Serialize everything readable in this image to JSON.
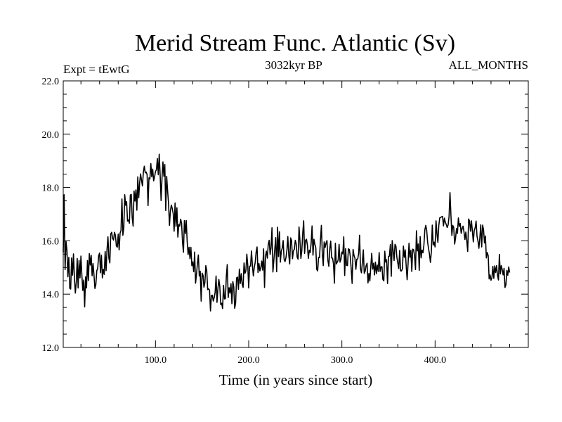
{
  "chart_data": {
    "type": "line",
    "title": "Merid Stream Func. Atlantic (Sv)",
    "left_note": "Expt = tEwtG",
    "center_note": "3032kyr BP",
    "right_note": "ALL_MONTHS",
    "xlabel": "Time (in years since start)",
    "ylabel": "",
    "xlim": [
      1,
      500
    ],
    "ylim": [
      12.0,
      22.0
    ],
    "x_ticks": [
      100,
      200,
      300,
      400
    ],
    "x_tick_labels": [
      "100.0",
      "200.0",
      "300.0",
      "400.0"
    ],
    "y_ticks": [
      12,
      14,
      16,
      18,
      20,
      22
    ],
    "y_tick_labels": [
      "12.0",
      "14.0",
      "16.0",
      "18.0",
      "20.0",
      "22.0"
    ],
    "grid": false,
    "line_color": "#000000",
    "series": [
      {
        "name": "Merid Stream Func. Atlantic",
        "x_start": 1,
        "x_step": 1,
        "values": [
          15.56,
          17.73,
          14.92,
          15.98,
          15.63,
          14.65,
          15.38,
          14.22,
          14.19,
          15.36,
          14.71,
          15.51,
          14.62,
          14.04,
          14.44,
          15.34,
          14.23,
          15.27,
          14.61,
          15.43,
          14.71,
          14.14,
          14.53,
          13.52,
          14.65,
          14.23,
          15.26,
          14.51,
          15.52,
          15.09,
          15.46,
          14.69,
          15.15,
          14.72,
          14.21,
          14.36,
          14.88,
          14.96,
          15.44,
          15.54,
          14.8,
          15.46,
          14.61,
          14.93,
          14.74,
          15.6,
          14.88,
          15.68,
          16.15,
          15.35,
          15.17,
          16.26,
          16.32,
          16.09,
          16.03,
          16.32,
          16.21,
          15.81,
          15.76,
          16.25,
          15.66,
          16.29,
          16.39,
          17.57,
          16.21,
          16.48,
          17.73,
          17.33,
          17.47,
          16.74,
          16.78,
          16.66,
          17.72,
          17.74,
          16.87,
          16.55,
          17.87,
          17.49,
          17.91,
          17.15,
          18.4,
          17.61,
          18.18,
          18.51,
          18.27,
          18.06,
          18.58,
          18.8,
          18.55,
          18.58,
          18.48,
          17.32,
          18.36,
          18.32,
          18.9,
          18.4,
          18.69,
          18.25,
          18.4,
          18.6,
          18.67,
          19.09,
          18.48,
          19.25,
          18.47,
          17.51,
          18.36,
          18.96,
          18.42,
          18.87,
          17.14,
          18.42,
          17.88,
          17.41,
          16.58,
          17.13,
          17.34,
          17.21,
          17.02,
          16.36,
          17.42,
          16.54,
          17.24,
          16.14,
          16.61,
          16.55,
          16.81,
          16.67,
          15.95,
          15.57,
          16.76,
          16.27,
          16.76,
          15.98,
          15.48,
          15.76,
          15.33,
          15.76,
          15.07,
          15.21,
          14.84,
          15.58,
          14.41,
          14.74,
          15.15,
          15.47,
          14.68,
          14.86,
          13.74,
          14.79,
          14.71,
          14.26,
          14.43,
          15.07,
          14.88,
          14.17,
          14.2,
          14.15,
          13.37,
          13.95,
          13.96,
          13.74,
          13.87,
          14.07,
          14.68,
          13.69,
          14.21,
          14.55,
          14.29,
          13.61,
          13.66,
          13.46,
          14.33,
          13.82,
          13.83,
          14.66,
          15.11,
          13.87,
          14.24,
          14.04,
          14.39,
          13.64,
          14.47,
          14.27,
          13.47,
          13.67,
          14.61,
          14.64,
          14.18,
          14.94,
          14.4,
          14.77,
          14.38,
          14.25,
          15.17,
          14.78,
          14.87,
          15.5,
          15.09,
          14.23,
          15.05,
          15.05,
          15.62,
          15.07,
          14.68,
          15.01,
          15.19,
          15.58,
          15.77,
          14.81,
          15.15,
          14.87,
          14.99,
          15.24,
          14.9,
          15.7,
          14.25,
          15.41,
          15.61,
          15.35,
          15.87,
          16.02,
          15.49,
          15.74,
          16.49,
          14.83,
          15.27,
          15.69,
          16.12,
          14.84,
          16.51,
          15.41,
          16.34,
          15.2,
          15.61,
          15.73,
          16.01,
          15.31,
          15.22,
          15.37,
          15.64,
          16.16,
          15.47,
          15.13,
          16.11,
          16.01,
          15.33,
          15.63,
          15.68,
          16.02,
          15.88,
          15.39,
          15.31,
          16.52,
          16.01,
          15.34,
          15.63,
          16.28,
          16.75,
          15.53,
          16.02,
          16.06,
          15.84,
          15.34,
          15.65,
          15.56,
          15.91,
          16.56,
          15.46,
          16.06,
          15.87,
          15.74,
          14.93,
          14.87,
          15.38,
          15.37,
          16.03,
          16.58,
          15.53,
          15.07,
          15.96,
          15.75,
          15.91,
          16.01,
          15.27,
          15.04,
          15.69,
          15.99,
          15.36,
          15.35,
          15.13,
          14.41,
          15.91,
          15.13,
          15.2,
          15.27,
          15.87,
          15.2,
          15.31,
          15.58,
          15.51,
          16.15,
          14.7,
          15.71,
          15.08,
          15.07,
          15.7,
          15.68,
          15.42,
          14.94,
          14.4,
          15.68,
          15.45,
          15.35,
          14.93,
          15.31,
          15.32,
          15.53,
          16.21,
          14.94,
          14.8,
          15.2,
          15.66,
          14.78,
          14.86,
          15.07,
          15.16,
          14.42,
          14.78,
          14.49,
          15.03,
          15.53,
          14.94,
          15.16,
          14.72,
          15.2,
          14.77,
          15.09,
          14.85,
          15.56,
          14.85,
          15.02,
          15.03,
          14.55,
          14.5,
          15.61,
          15.2,
          15.29,
          14.4,
          15.41,
          15.43,
          15.86,
          14.67,
          16.01,
          15.63,
          15.26,
          15.87,
          15.8,
          15.38,
          15.17,
          14.96,
          15.64,
          14.87,
          14.87,
          14.96,
          15.8,
          15.38,
          15.66,
          15.06,
          14.54,
          15.13,
          15.91,
          15.38,
          15.64,
          14.85,
          15.69,
          15.67,
          15.43,
          14.92,
          16.38,
          15.62,
          15.88,
          14.89,
          16.16,
          15.36,
          15.65,
          15.55,
          15.84,
          16.41,
          16.58,
          16.39,
          15.95,
          15.7,
          15.5,
          15.19,
          15.59,
          16.59,
          15.84,
          15.95,
          15.77,
          16.75,
          16.26,
          15.94,
          16.58,
          16.86,
          16.88,
          16.9,
          16.92,
          16.56,
          16.85,
          16.7,
          16.61,
          16.5,
          16.6,
          16.91,
          17.81,
          16.97,
          16.2,
          16.58,
          16.5,
          15.88,
          16.11,
          16.46,
          16.28,
          16.86,
          16.54,
          16.65,
          16.28,
          16.46,
          16.55,
          16.34,
          16.05,
          16.33,
          16.01,
          15.6,
          16.82,
          16.74,
          16.36,
          16.75,
          16.38,
          15.96,
          16.39,
          16.49,
          16.74,
          16.17,
          16.0,
          15.72,
          16.1,
          16.6,
          15.77,
          16.59,
          16.42,
          15.92,
          16.18,
          15.36,
          15.56,
          15.44,
          14.57,
          14.72,
          14.52,
          14.62,
          15.04,
          14.59,
          15.06,
          14.81,
          15.07,
          14.71,
          14.53,
          15.49,
          14.76,
          15.07,
          14.93,
          14.72,
          14.97,
          14.25,
          14.35,
          14.89,
          14.71,
          15.02,
          14.81
        ]
      }
    ]
  }
}
